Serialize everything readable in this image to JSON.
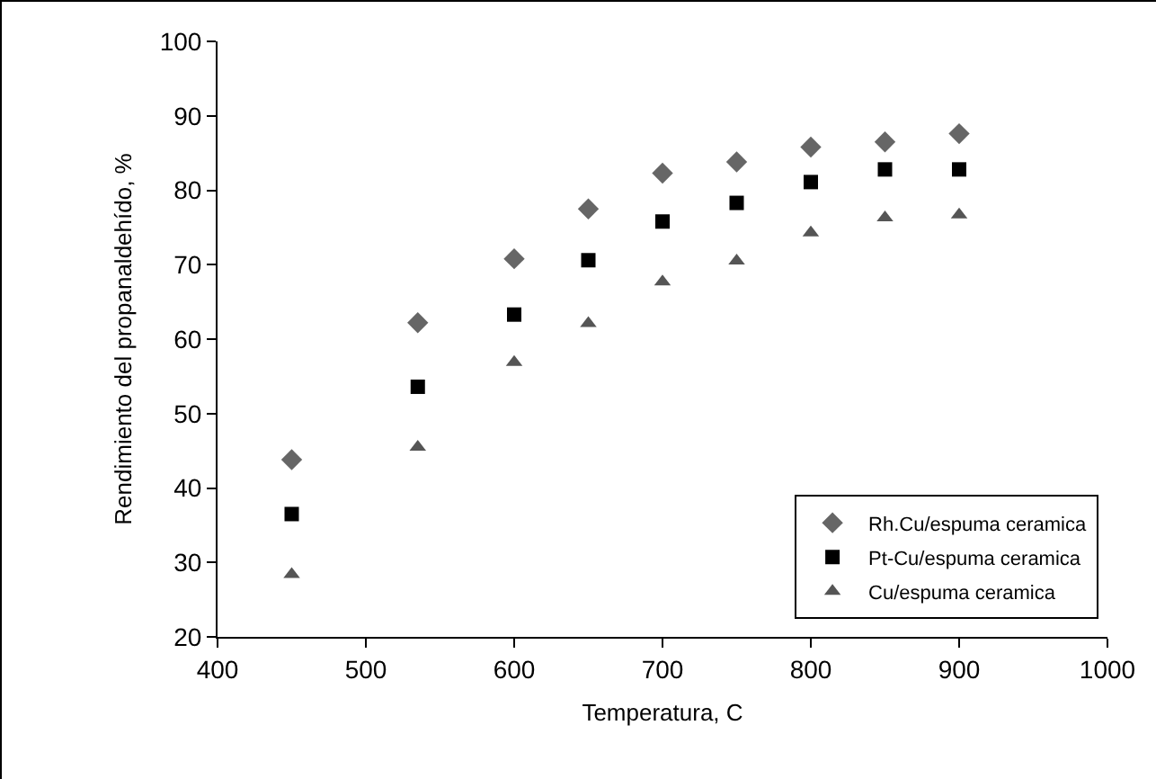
{
  "chart_data": {
    "type": "scatter",
    "xlabel": "Temperatura, C",
    "ylabel": "Rendimiento del propanaldehído, %",
    "x": [
      450,
      535,
      600,
      650,
      700,
      750,
      800,
      850,
      900
    ],
    "series": [
      {
        "name": "Rh.Cu/espuma ceramica",
        "color": "#666666",
        "marker": "diamond",
        "values": [
          43.8,
          62.2,
          70.8,
          77.5,
          82.3,
          83.8,
          85.8,
          86.5,
          87.6
        ]
      },
      {
        "name": "Pt-Cu/espuma ceramica",
        "color": "#000000",
        "marker": "square",
        "values": [
          36.5,
          53.6,
          63.3,
          70.6,
          75.8,
          78.3,
          81.1,
          82.8,
          82.8
        ]
      },
      {
        "name": "Cu/espuma ceramica",
        "color": "#555555",
        "marker": "triangle",
        "values": [
          28.4,
          45.5,
          56.9,
          62.1,
          67.7,
          70.5,
          74.3,
          76.3,
          76.7
        ]
      }
    ],
    "xlim": [
      400,
      1000
    ],
    "xticks": [
      400,
      500,
      600,
      700,
      800,
      900,
      1000
    ],
    "ylim": [
      20,
      100
    ],
    "yticks": [
      20,
      30,
      40,
      50,
      60,
      70,
      80,
      90,
      100
    ],
    "grid": false,
    "legend": "bottom right"
  }
}
